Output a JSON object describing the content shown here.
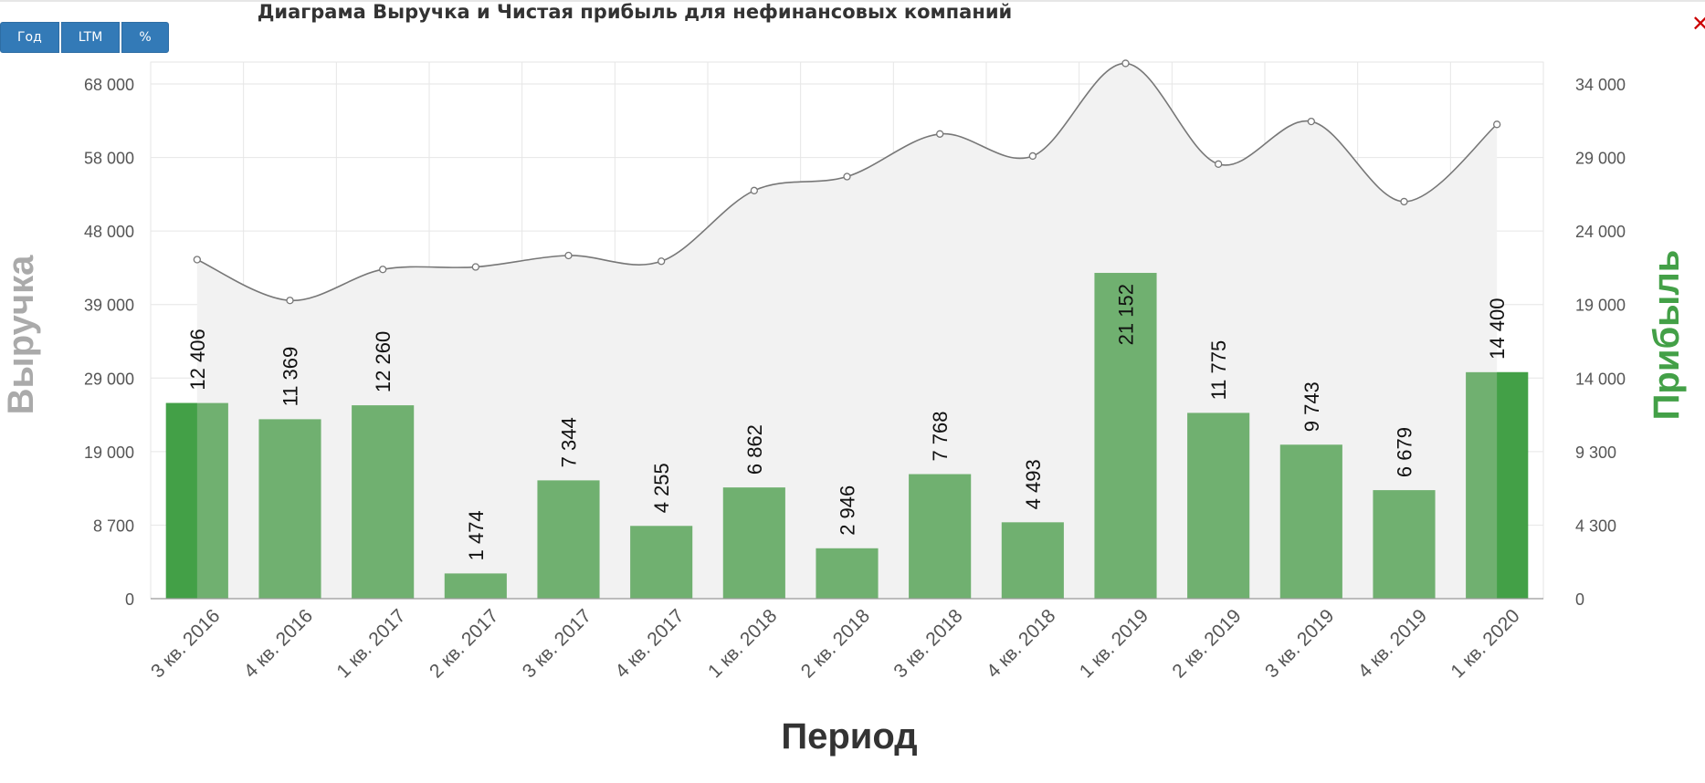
{
  "toolbar": {
    "buttons": [
      "Год",
      "LTM",
      "%"
    ]
  },
  "close_icon": "close-icon",
  "colors": {
    "button_bg": "#337ab7",
    "bar": "#70b070",
    "bar_highlight": "#43a047",
    "line": "#777777",
    "area": "#f2f2f2",
    "close": "#cc0000"
  },
  "chart_data": {
    "type": "bar",
    "title": "Диаграма Выручка и Чистая прибыль для нефинансовых компаний",
    "xlabel": "Период",
    "ylabel_left": "Выручка",
    "ylabel_right": "Прибыль",
    "categories": [
      "3 кв. 2016",
      "4 кв. 2016",
      "1 кв. 2017",
      "2 кв. 2017",
      "3 кв. 2017",
      "4 кв. 2017",
      "1 кв. 2018",
      "2 кв. 2018",
      "3 кв. 2018",
      "4 кв. 2018",
      "1 кв. 2019",
      "2 кв. 2019",
      "3 кв. 2019",
      "4 кв. 2019",
      "1 кв. 2020"
    ],
    "left_axis": {
      "ticks": [
        0,
        8700,
        19000,
        29000,
        39000,
        48000,
        58000,
        68000
      ],
      "tick_labels": [
        "0",
        "8 700",
        "19 000",
        "29 000",
        "39 000",
        "48 000",
        "58 000",
        "68 000"
      ]
    },
    "right_axis": {
      "ticks": [
        0,
        4300,
        9300,
        14000,
        19000,
        24000,
        29000,
        34000
      ],
      "tick_labels": [
        "0",
        "4 300",
        "9 300",
        "14 000",
        "19 000",
        "24 000",
        "29 000",
        "34 000"
      ]
    },
    "series": [
      {
        "name": "Выручка",
        "type": "area-spline",
        "axis": "left",
        "values": [
          44500,
          39500,
          43300,
          43600,
          45000,
          44300,
          53500,
          55400,
          61200,
          58200,
          70800,
          57100,
          62900,
          52000,
          62500
        ]
      },
      {
        "name": "Прибыль",
        "type": "bar",
        "axis": "right",
        "values": [
          12406,
          11369,
          12260,
          1474,
          7344,
          4255,
          6862,
          2946,
          7768,
          4493,
          21152,
          11775,
          9743,
          6679,
          14400
        ],
        "labels": [
          "12 406",
          "11 369",
          "12 260",
          "1 474",
          "7 344",
          "4 255",
          "6 862",
          "2 946",
          "7 768",
          "4 493",
          "21 152",
          "11 775",
          "9 743",
          "6 679",
          "14 400"
        ]
      }
    ],
    "grid": true,
    "legend": "none"
  }
}
